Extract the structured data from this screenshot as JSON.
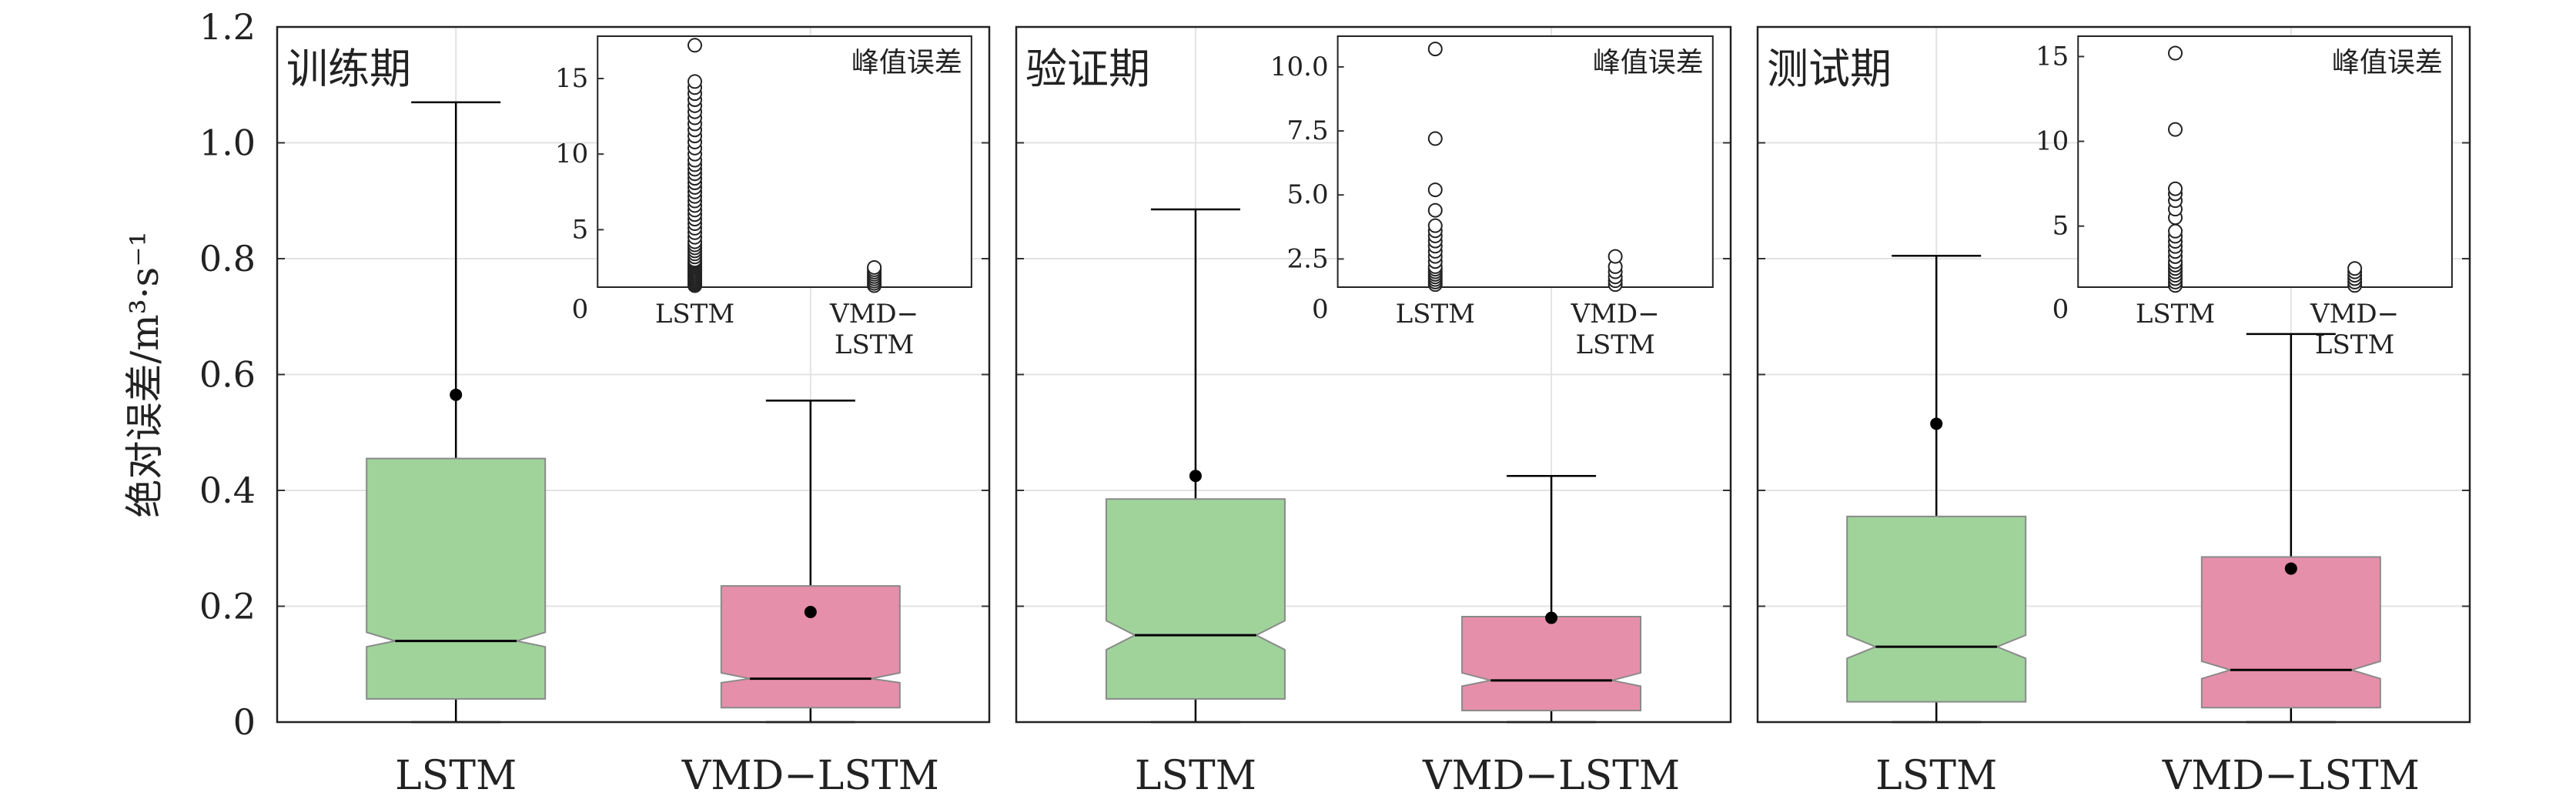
{
  "figure": {
    "ylabel": "绝对误差/m³·s⁻¹",
    "ylim": [
      0,
      1.2
    ],
    "yticks": [
      0,
      0.2,
      0.4,
      0.6,
      0.8,
      1.0,
      1.2
    ],
    "ytick_labels": [
      "0",
      "0.2",
      "0.4",
      "0.6",
      "0.8",
      "1.0",
      "1.2"
    ],
    "colors": {
      "LSTM": "#9fd39a",
      "VMD-LSTM": "#e68faa",
      "grid": "#e3e3e3"
    }
  },
  "chart_data": [
    {
      "type": "box",
      "title": "训练期",
      "categories": [
        "LSTM",
        "VMD−LSTM"
      ],
      "series": [
        {
          "name": "LSTM",
          "q1": 0.04,
          "median": 0.14,
          "q3": 0.455,
          "whisker_low": 0.0,
          "whisker_high": 1.07,
          "mean": 0.565,
          "notch_low": 0.13,
          "notch_high": 0.155
        },
        {
          "name": "VMD−LSTM",
          "q1": 0.025,
          "median": 0.075,
          "q3": 0.235,
          "whisker_low": 0.0,
          "whisker_high": 0.555,
          "mean": 0.19,
          "notch_low": 0.068,
          "notch_high": 0.085
        }
      ],
      "inset": {
        "title": "峰值误差",
        "categories": [
          "LSTM",
          "VMD−\nLSTM"
        ],
        "ylim": [
          1.2,
          17.8
        ],
        "yticks": [
          0,
          5,
          10,
          15
        ],
        "ytick_labels": [
          "0",
          "5",
          "10",
          "15"
        ],
        "outliers": [
          [
            1.3,
            1.4,
            1.5,
            1.6,
            1.7,
            1.8,
            1.9,
            2.0,
            2.1,
            2.2,
            2.3,
            2.4,
            2.5,
            2.6,
            2.7,
            2.8,
            2.9,
            3.0,
            3.2,
            3.4,
            3.6,
            3.8,
            4.0,
            4.2,
            4.5,
            4.8,
            5.1,
            5.4,
            5.7,
            6.0,
            6.3,
            6.6,
            6.9,
            7.2,
            7.5,
            7.8,
            8.1,
            8.4,
            8.7,
            9.0,
            9.3,
            9.6,
            10.0,
            10.4,
            10.8,
            11.2,
            11.6,
            12.0,
            12.4,
            12.8,
            13.2,
            13.6,
            14.0,
            14.4,
            14.8,
            17.2
          ],
          [
            1.3,
            1.45,
            1.6,
            1.75,
            1.9,
            2.05,
            2.2,
            2.35,
            2.5
          ]
        ]
      }
    },
    {
      "type": "box",
      "title": "验证期",
      "categories": [
        "LSTM",
        "VMD−LSTM"
      ],
      "series": [
        {
          "name": "LSTM",
          "q1": 0.04,
          "median": 0.15,
          "q3": 0.385,
          "whisker_low": 0.0,
          "whisker_high": 0.885,
          "mean": 0.425,
          "notch_low": 0.125,
          "notch_high": 0.175
        },
        {
          "name": "VMD−LSTM",
          "q1": 0.02,
          "median": 0.072,
          "q3": 0.182,
          "whisker_low": 0.0,
          "whisker_high": 0.425,
          "mean": 0.18,
          "notch_low": 0.062,
          "notch_high": 0.085
        }
      ],
      "inset": {
        "title": "峰值误差",
        "categories": [
          "LSTM",
          "VMD−\nLSTM"
        ],
        "ylim": [
          1.4,
          11.2
        ],
        "yticks": [
          0,
          2.5,
          5.0,
          7.5,
          10.0
        ],
        "ytick_labels": [
          "0",
          "2.5",
          "5.0",
          "7.5",
          "10.0"
        ],
        "outliers": [
          [
            1.5,
            1.6,
            1.7,
            1.8,
            1.9,
            2.0,
            2.1,
            2.2,
            2.4,
            2.6,
            2.8,
            3.0,
            3.2,
            3.4,
            3.6,
            3.8,
            4.4,
            5.2,
            7.2,
            10.7
          ],
          [
            1.5,
            1.65,
            1.8,
            2.0,
            2.2,
            2.6
          ]
        ]
      }
    },
    {
      "type": "box",
      "title": "测试期",
      "categories": [
        "LSTM",
        "VMD−LSTM"
      ],
      "series": [
        {
          "name": "LSTM",
          "q1": 0.035,
          "median": 0.13,
          "q3": 0.355,
          "whisker_low": 0.0,
          "whisker_high": 0.805,
          "mean": 0.515,
          "notch_low": 0.11,
          "notch_high": 0.15
        },
        {
          "name": "VMD−LSTM",
          "q1": 0.025,
          "median": 0.09,
          "q3": 0.285,
          "whisker_low": 0.0,
          "whisker_high": 0.67,
          "mean": 0.265,
          "notch_low": 0.075,
          "notch_high": 0.105
        }
      ],
      "inset": {
        "title": "峰值误差",
        "categories": [
          "LSTM",
          "VMD−\nLSTM"
        ],
        "ylim": [
          1.4,
          16.2
        ],
        "yticks": [
          0,
          5,
          10,
          15
        ],
        "ytick_labels": [
          "0",
          "5",
          "10",
          "15"
        ],
        "outliers": [
          [
            1.5,
            1.7,
            1.9,
            2.1,
            2.3,
            2.5,
            2.7,
            2.9,
            3.2,
            3.5,
            3.8,
            4.1,
            4.4,
            4.7,
            5.5,
            6.0,
            6.5,
            6.9,
            7.2,
            10.7,
            15.2
          ],
          [
            1.5,
            1.7,
            1.9,
            2.1,
            2.3,
            2.5
          ]
        ]
      }
    }
  ]
}
